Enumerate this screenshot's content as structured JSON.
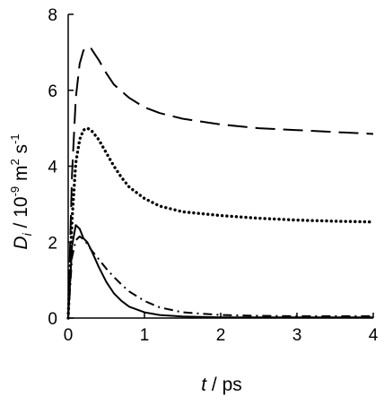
{
  "chart_data": {
    "type": "line",
    "title": "",
    "xlabel": {
      "var": "t",
      "rest": " / ps"
    },
    "ylabel": {
      "var": "D",
      "sub": "i",
      "rest1": " / 10",
      "exp1": "-9",
      "rest2": " m",
      "exp2": "2",
      "rest3": " s",
      "exp3": "-1"
    },
    "xlim": [
      0,
      4
    ],
    "ylim": [
      0,
      8
    ],
    "x_ticks": [
      "0",
      "1",
      "2",
      "3",
      "4"
    ],
    "y_ticks": [
      "0",
      "2",
      "4",
      "6",
      "8"
    ],
    "grid": false,
    "legend": "none",
    "series": [
      {
        "style": "dashed",
        "x": [
          0.0,
          0.05,
          0.1,
          0.15,
          0.2,
          0.25,
          0.3,
          0.4,
          0.5,
          0.6,
          0.8,
          1.0,
          1.2,
          1.5,
          2.0,
          2.5,
          3.0,
          3.5,
          4.0
        ],
        "y": [
          0.0,
          3.8,
          5.8,
          6.7,
          7.05,
          7.15,
          7.1,
          6.8,
          6.45,
          6.15,
          5.8,
          5.55,
          5.4,
          5.25,
          5.1,
          5.0,
          4.95,
          4.9,
          4.85
        ]
      },
      {
        "style": "dotted",
        "x": [
          0.0,
          0.05,
          0.1,
          0.15,
          0.2,
          0.25,
          0.3,
          0.4,
          0.5,
          0.6,
          0.7,
          0.8,
          1.0,
          1.2,
          1.5,
          2.0,
          2.5,
          3.0,
          3.5,
          4.0
        ],
        "y": [
          0.0,
          2.6,
          4.1,
          4.7,
          4.95,
          5.0,
          4.95,
          4.7,
          4.35,
          4.0,
          3.7,
          3.45,
          3.15,
          2.95,
          2.8,
          2.7,
          2.63,
          2.58,
          2.55,
          2.53
        ]
      },
      {
        "style": "solid",
        "x": [
          0.0,
          0.05,
          0.1,
          0.15,
          0.2,
          0.25,
          0.3,
          0.4,
          0.5,
          0.6,
          0.7,
          0.8,
          1.0,
          1.2,
          1.5,
          2.0,
          2.5,
          3.0,
          3.5,
          4.0
        ],
        "y": [
          0.0,
          1.9,
          2.45,
          2.35,
          2.1,
          2.0,
          1.8,
          1.35,
          0.95,
          0.65,
          0.45,
          0.3,
          0.15,
          0.08,
          0.04,
          0.02,
          0.02,
          0.02,
          0.02,
          0.02
        ]
      },
      {
        "style": "dashdot",
        "x": [
          0.0,
          0.05,
          0.1,
          0.15,
          0.2,
          0.25,
          0.3,
          0.4,
          0.5,
          0.6,
          0.7,
          0.8,
          1.0,
          1.2,
          1.5,
          2.0,
          2.5,
          3.0,
          3.5,
          4.0
        ],
        "y": [
          0.0,
          1.6,
          2.05,
          2.15,
          2.08,
          1.95,
          1.8,
          1.55,
          1.3,
          1.08,
          0.88,
          0.7,
          0.45,
          0.28,
          0.15,
          0.08,
          0.06,
          0.05,
          0.05,
          0.05
        ]
      }
    ],
    "colors": {
      "line": "#000000",
      "axis": "#000000",
      "background": "#ffffff"
    }
  }
}
